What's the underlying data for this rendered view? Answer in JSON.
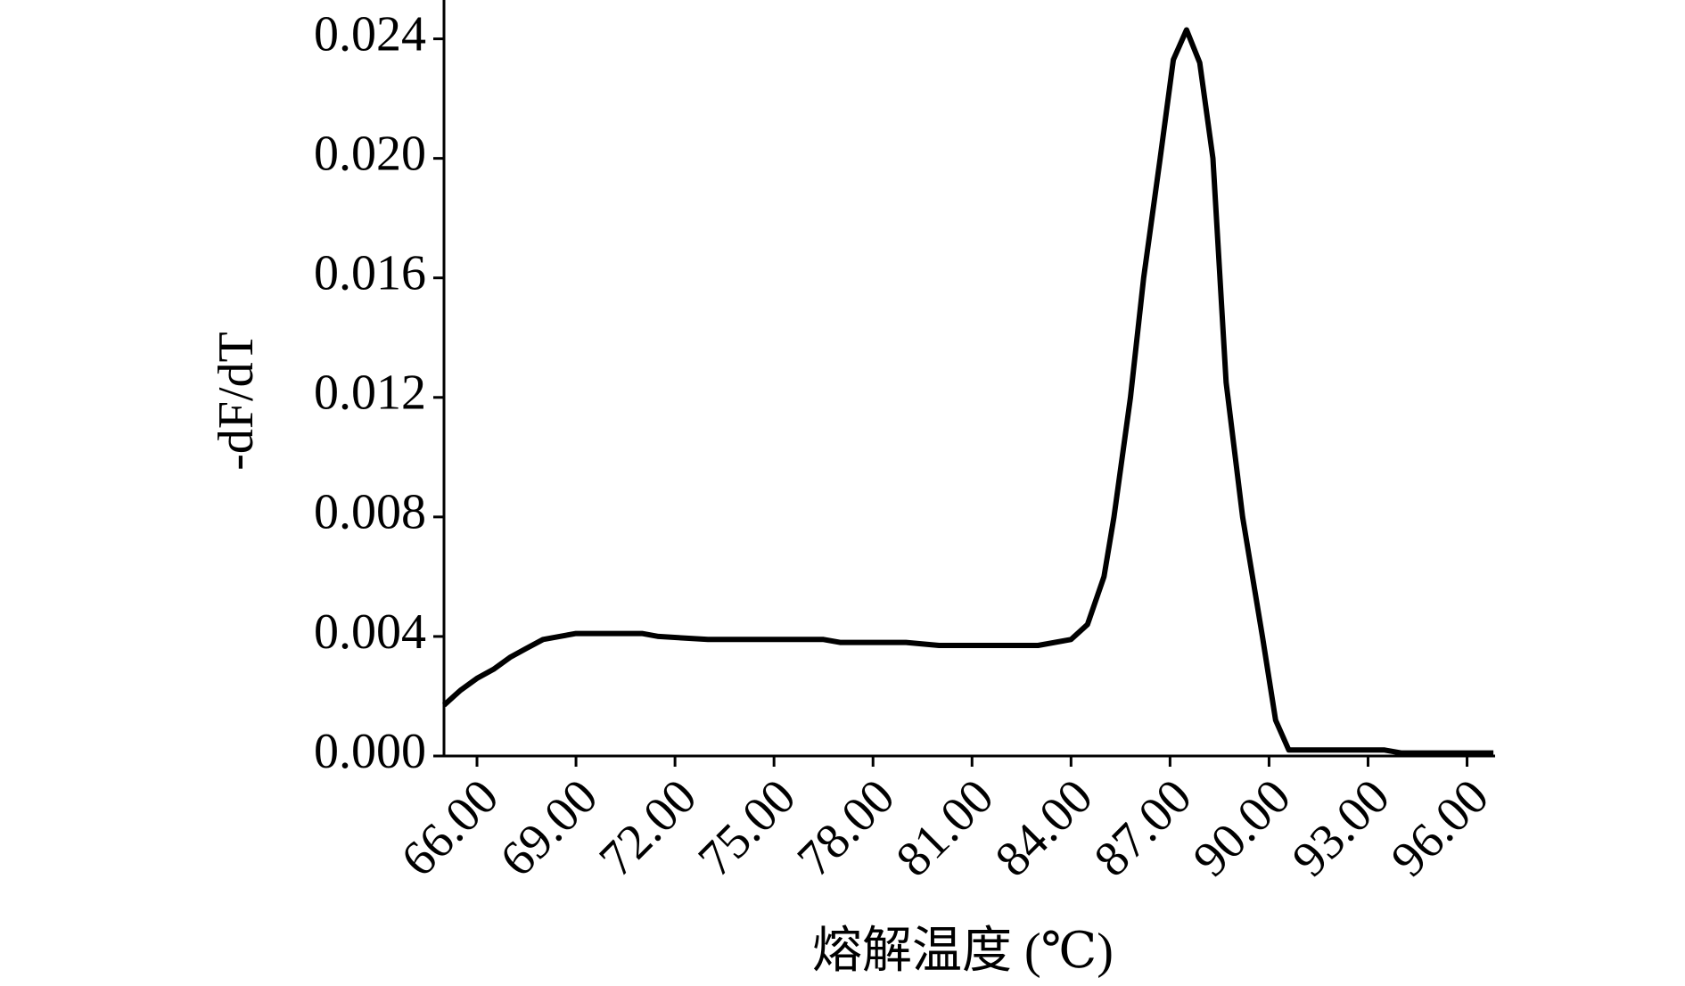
{
  "chart_data": {
    "type": "line",
    "x_label": "熔解温度 (℃)",
    "y_label": "-dF/dT",
    "x": [
      65,
      65.5,
      66,
      66.5,
      67,
      67.5,
      68,
      68.5,
      69,
      70,
      71,
      71.5,
      73,
      75,
      76.5,
      77,
      79,
      80,
      82,
      83,
      84,
      84.5,
      85,
      85.3,
      85.8,
      86.2,
      86.7,
      87.1,
      87.5,
      87.9,
      88.3,
      88.7,
      89.2,
      89.8,
      90.2,
      90.6,
      93.5,
      94,
      96.8
    ],
    "series": [
      {
        "color": "#000000",
        "values": [
          0.0017,
          0.0022,
          0.0026,
          0.0029,
          0.0033,
          0.0036,
          0.0039,
          0.004,
          0.0041,
          0.0041,
          0.0041,
          0.004,
          0.0039,
          0.0039,
          0.0039,
          0.0038,
          0.0038,
          0.0037,
          0.0037,
          0.0037,
          0.0039,
          0.0044,
          0.006,
          0.008,
          0.012,
          0.016,
          0.02,
          0.0233,
          0.0243,
          0.0232,
          0.02,
          0.0125,
          0.008,
          0.004,
          0.0012,
          0.0002,
          0.0002,
          0.0001,
          0.0001
        ]
      }
    ],
    "xlim": [
      65,
      96.85
    ],
    "ylim": [
      0,
      0.0253
    ],
    "xticks": [
      {
        "value": 66,
        "label": "66.00"
      },
      {
        "value": 69,
        "label": "69.00"
      },
      {
        "value": 72,
        "label": "72.00"
      },
      {
        "value": 75,
        "label": "75.00"
      },
      {
        "value": 78,
        "label": "78.00"
      },
      {
        "value": 81,
        "label": "81.00"
      },
      {
        "value": 84,
        "label": "84.00"
      },
      {
        "value": 87,
        "label": "87.00"
      },
      {
        "value": 90,
        "label": "90.00"
      },
      {
        "value": 93,
        "label": "93.00"
      },
      {
        "value": 96,
        "label": "96.00"
      }
    ],
    "yticks": [
      {
        "value": 0,
        "label": "0.000"
      },
      0.004,
      0.008,
      0.012,
      0.016,
      {
        "value": 0.02,
        "label": "0.020"
      },
      0.024
    ],
    "grid": false
  }
}
